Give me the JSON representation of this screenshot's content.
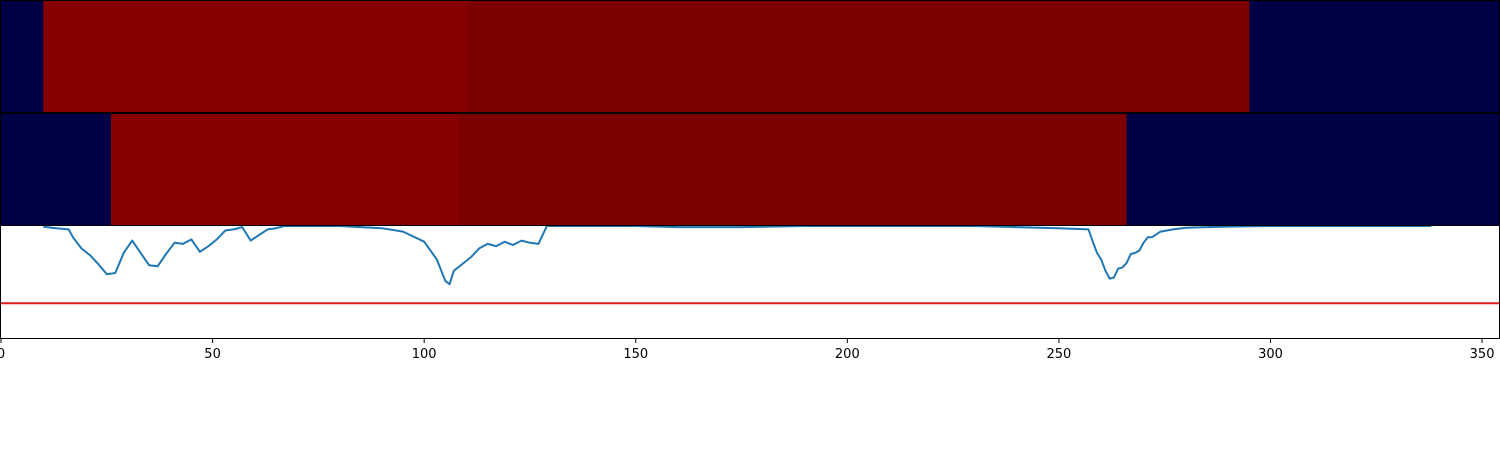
{
  "chart_data": [
    {
      "type": "heatmap",
      "title": "",
      "xlim": [
        0,
        354
      ],
      "colormap": "seismic",
      "segments": [
        {
          "x0": 0,
          "x1": 10,
          "color": "#000047"
        },
        {
          "x0": 10,
          "x1": 110,
          "color": "#870000"
        },
        {
          "x0": 110,
          "x1": 295,
          "color": "#7d0000"
        },
        {
          "x0": 295,
          "x1": 354,
          "color": "#000047"
        }
      ]
    },
    {
      "type": "heatmap",
      "title": "",
      "xlim": [
        0,
        354
      ],
      "colormap": "seismic",
      "segments": [
        {
          "x0": 0,
          "x1": 26,
          "color": "#000047"
        },
        {
          "x0": 26,
          "x1": 108,
          "color": "#870000"
        },
        {
          "x0": 108,
          "x1": 266,
          "color": "#7d0000"
        },
        {
          "x0": 266,
          "x1": 354,
          "color": "#000047"
        }
      ]
    },
    {
      "type": "line",
      "title": "",
      "xlabel": "",
      "ylabel": "",
      "xlim": [
        0,
        354
      ],
      "ylim": [
        0,
        1
      ],
      "grid": false,
      "xticks": [
        "0",
        "50",
        "100",
        "150",
        "200",
        "250",
        "300",
        "350"
      ],
      "xtick_values": [
        0,
        50,
        100,
        150,
        200,
        250,
        300,
        350
      ],
      "threshold": {
        "value": 0.31,
        "color": "#dd1c1c"
      },
      "series": [
        {
          "color": "#1f77b4",
          "x": [
            10,
            13,
            16,
            17,
            19,
            21,
            23,
            25,
            27,
            29,
            31,
            33,
            35,
            37,
            39,
            41,
            43,
            45,
            47,
            49,
            51,
            53,
            55,
            57,
            59,
            61,
            63,
            65,
            67,
            69,
            71,
            73,
            75,
            80,
            90,
            95,
            100,
            103,
            105,
            106,
            107,
            109,
            111,
            113,
            115,
            117,
            119,
            121,
            123,
            125,
            127,
            129,
            130,
            140,
            150,
            160,
            175,
            190,
            210,
            230,
            250,
            257,
            258,
            259,
            260,
            261,
            262,
            263,
            264,
            265,
            266,
            267,
            268,
            269,
            270,
            271,
            272,
            274,
            277,
            280,
            285,
            290,
            295,
            300,
            310,
            320,
            338
          ],
          "y": [
            0.994,
            0.98,
            0.97,
            0.9,
            0.8,
            0.74,
            0.66,
            0.57,
            0.58,
            0.76,
            0.87,
            0.76,
            0.65,
            0.64,
            0.75,
            0.85,
            0.84,
            0.88,
            0.77,
            0.82,
            0.88,
            0.96,
            0.97,
            0.99,
            0.87,
            0.92,
            0.97,
            0.98,
            1.0,
            1.0,
            1.0,
            1.0,
            1.0,
            1.0,
            0.98,
            0.95,
            0.86,
            0.7,
            0.51,
            0.48,
            0.6,
            0.66,
            0.72,
            0.8,
            0.84,
            0.82,
            0.86,
            0.83,
            0.87,
            0.85,
            0.84,
            1.0,
            1.0,
            1.0,
            1.0,
            0.99,
            0.99,
            1.0,
            1.0,
            1.0,
            0.98,
            0.97,
            0.86,
            0.76,
            0.7,
            0.6,
            0.53,
            0.54,
            0.62,
            0.63,
            0.67,
            0.75,
            0.76,
            0.78,
            0.85,
            0.9,
            0.9,
            0.95,
            0.97,
            0.985,
            0.99,
            0.995,
            0.998,
            1.0,
            1.0,
            1.0,
            1.0
          ]
        }
      ]
    }
  ]
}
